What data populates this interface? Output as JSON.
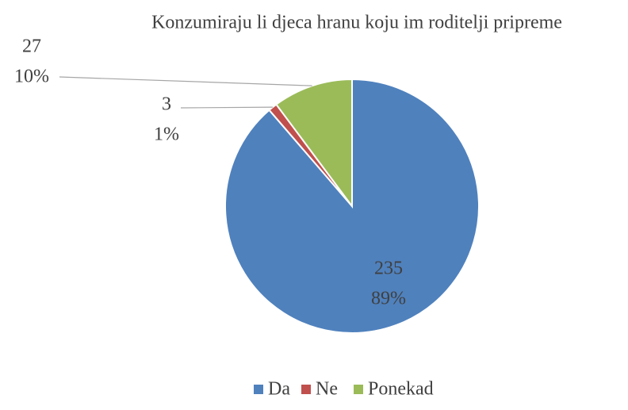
{
  "chart_data": {
    "type": "pie",
    "title": "Konzumiraju li djeca hranu koju im roditelji pripreme",
    "categories": [
      "Da",
      "Ne",
      "Ponekad"
    ],
    "values": [
      235,
      3,
      27
    ],
    "percent_labels": [
      "89%",
      "1%",
      "10%"
    ],
    "colors": [
      "#4f81bd",
      "#c0504d",
      "#9bbb59"
    ],
    "legend": "bottom"
  }
}
